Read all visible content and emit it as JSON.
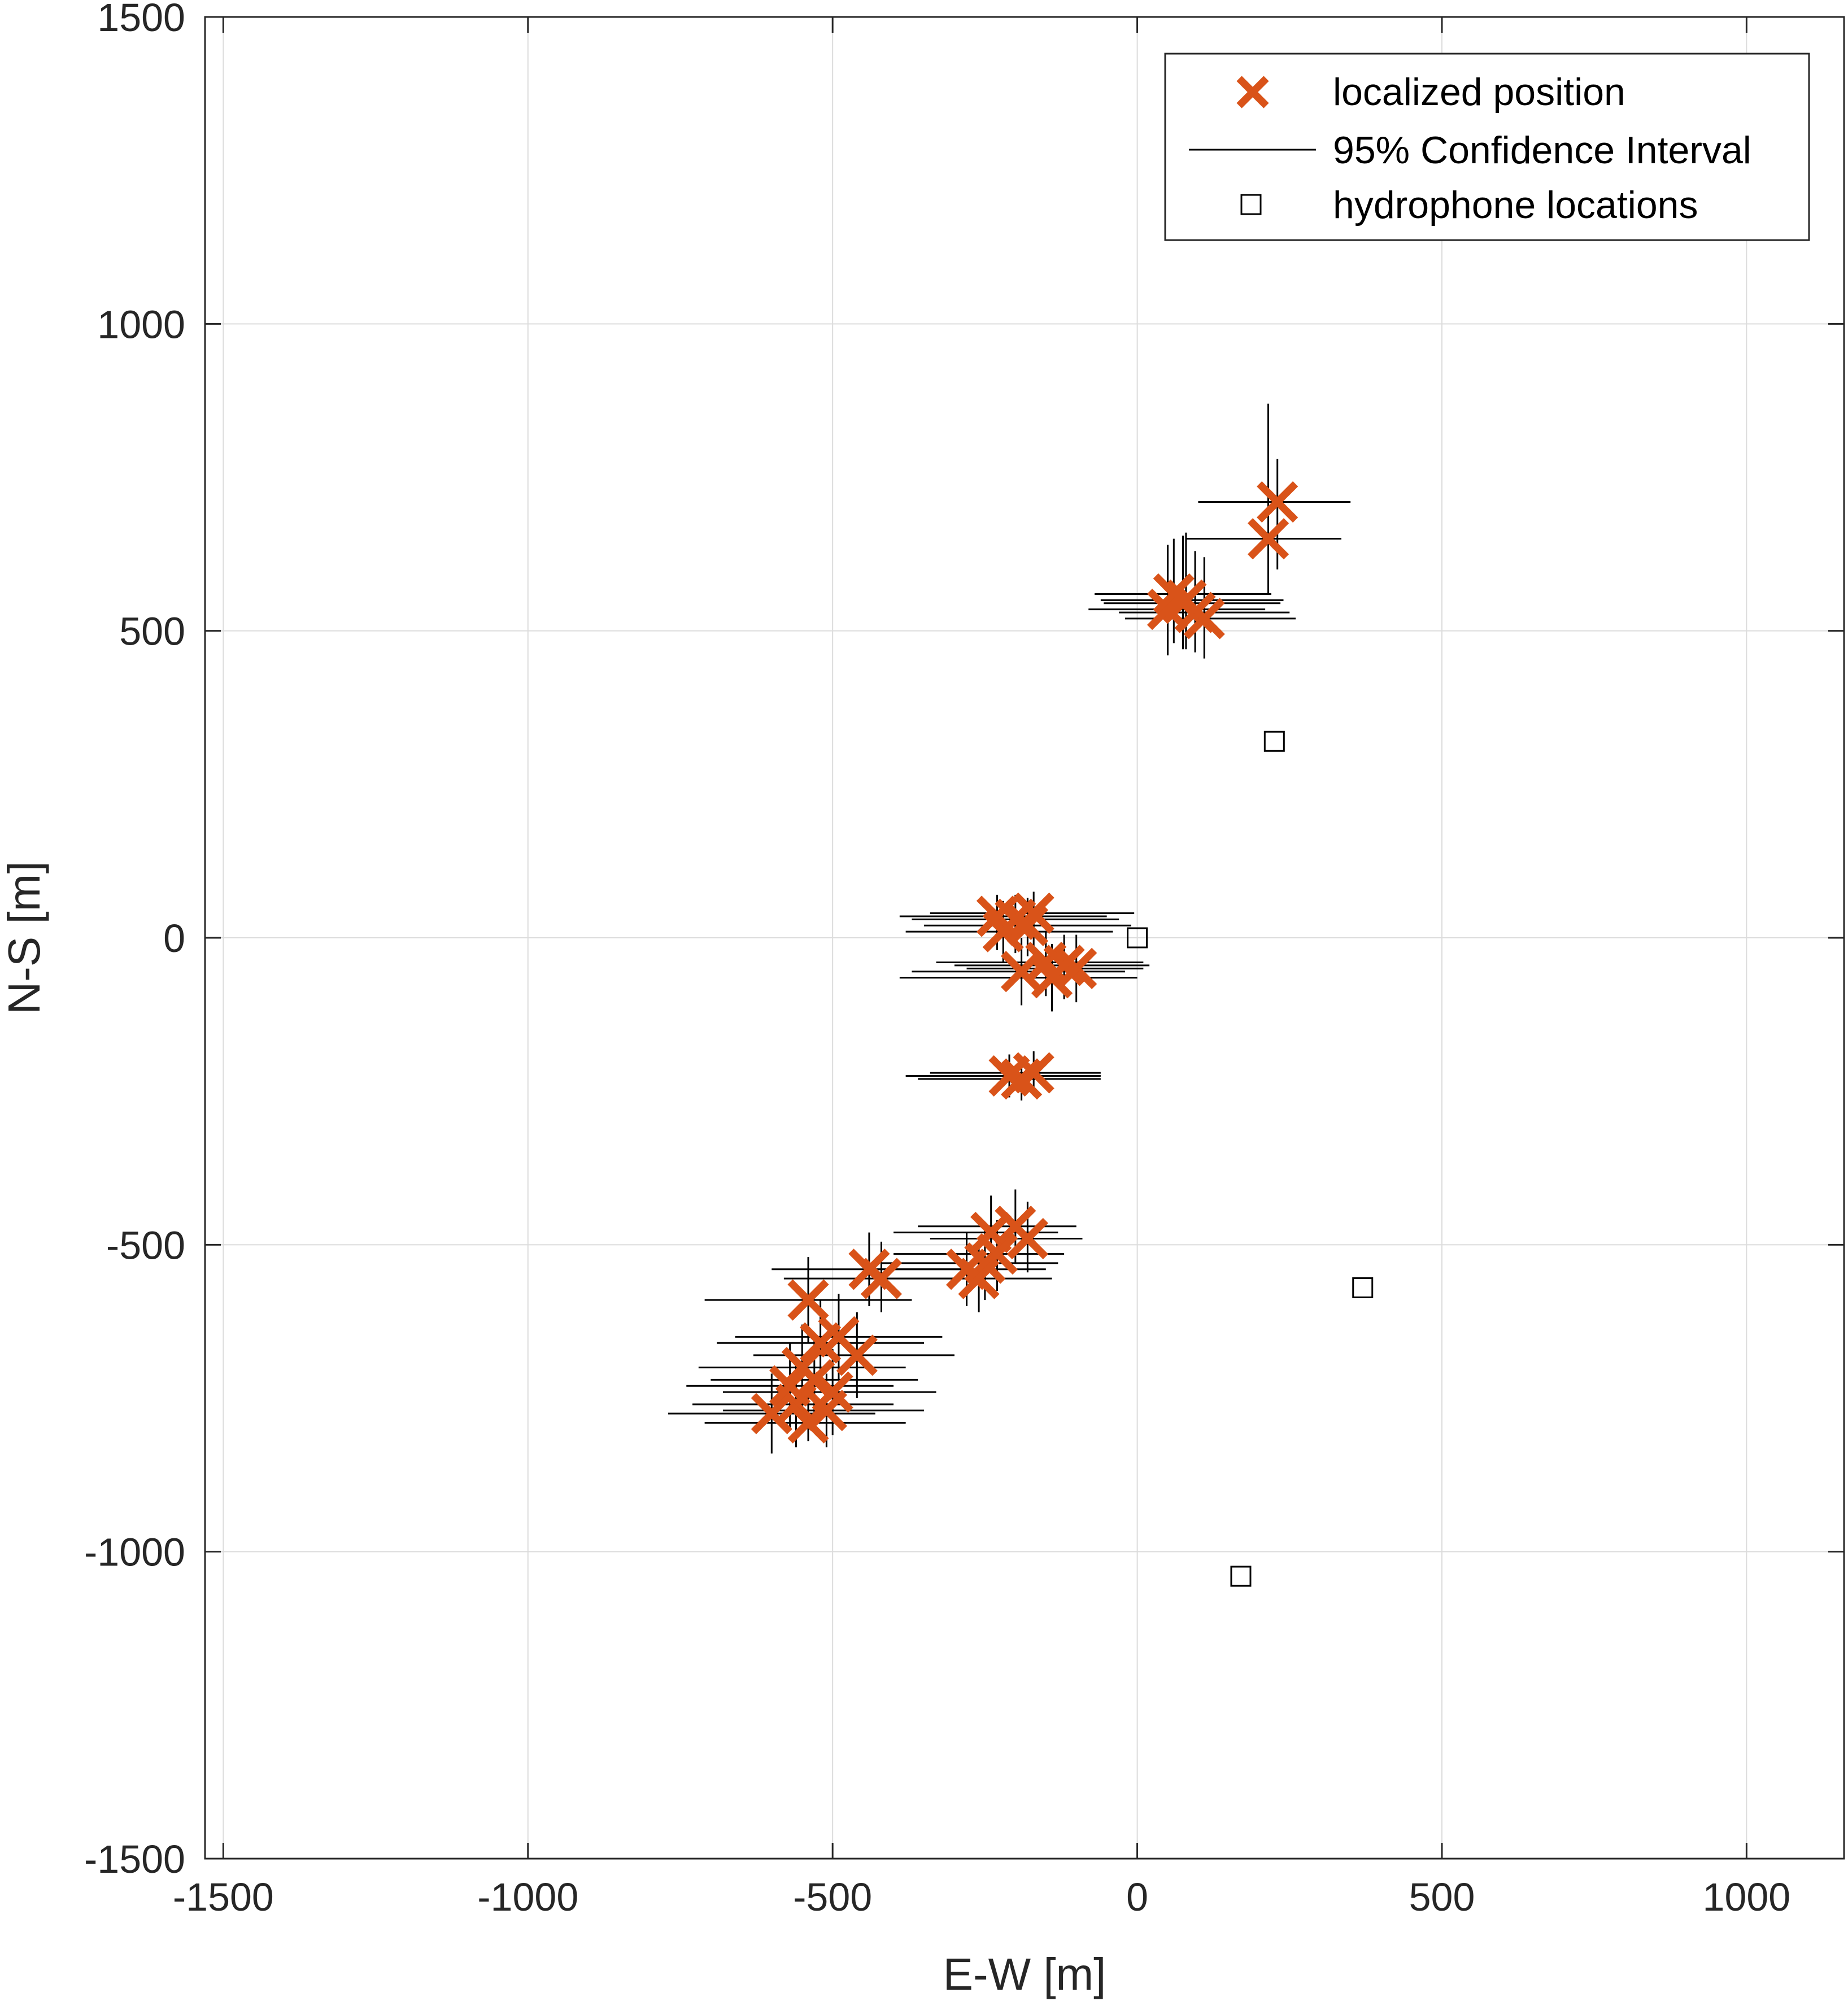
{
  "chart_data": {
    "type": "scatter",
    "title": "",
    "xlabel": "E-W [m]",
    "ylabel": "N-S [m]",
    "xlim": [
      -1530,
      1160
    ],
    "ylim": [
      -1500,
      1500
    ],
    "grid": true,
    "x_ticks": [
      -1500,
      -1000,
      -500,
      0,
      500,
      1000
    ],
    "y_ticks": [
      -1500,
      -1000,
      -500,
      0,
      500,
      1000,
      1500
    ],
    "x_tick_labels": [
      "-1500",
      "-1000",
      "-500",
      "0",
      "500",
      "1000"
    ],
    "y_tick_labels": [
      "-1500",
      "-1000",
      "-500",
      "0",
      "500",
      "1000",
      "1500"
    ],
    "legend": {
      "position": "top-right",
      "entries": [
        {
          "label": "localized position",
          "marker": "x",
          "color": "#D95319"
        },
        {
          "label": "95% Confidence Interval",
          "marker": "line",
          "color": "#000000"
        },
        {
          "label": "hydrophone locations",
          "marker": "square",
          "color": "#000000"
        }
      ]
    },
    "series": [
      {
        "name": "localized position",
        "marker": "x",
        "color": "#D95319",
        "points": [
          {
            "x": 230,
            "y": 710,
            "ex": [
              100,
              350
            ],
            "ey": [
              600,
              780
            ]
          },
          {
            "x": 215,
            "y": 650,
            "ex": [
              80,
              335
            ],
            "ey": [
              560,
              870
            ]
          },
          {
            "x": 60,
            "y": 560,
            "ex": [
              -70,
              220
            ],
            "ey": [
              480,
              650
            ]
          },
          {
            "x": 75,
            "y": 545,
            "ex": [
              -55,
              235
            ],
            "ey": [
              470,
              655
            ]
          },
          {
            "x": 50,
            "y": 535,
            "ex": [
              -80,
              210
            ],
            "ey": [
              460,
              640
            ]
          },
          {
            "x": 95,
            "y": 530,
            "ex": [
              -30,
              250
            ],
            "ey": [
              465,
              630
            ]
          },
          {
            "x": 110,
            "y": 520,
            "ex": [
              -20,
              260
            ],
            "ey": [
              455,
              620
            ]
          },
          {
            "x": 80,
            "y": 550,
            "ex": [
              -60,
              240
            ],
            "ey": [
              470,
              660
            ]
          },
          {
            "x": -230,
            "y": 35,
            "ex": [
              -390,
              -50
            ],
            "ey": [
              -20,
              70
            ]
          },
          {
            "x": -200,
            "y": 30,
            "ex": [
              -370,
              -30
            ],
            "ey": [
              -25,
              70
            ]
          },
          {
            "x": -180,
            "y": 20,
            "ex": [
              -350,
              -10
            ],
            "ey": [
              -30,
              65
            ]
          },
          {
            "x": -220,
            "y": 10,
            "ex": [
              -380,
              -40
            ],
            "ey": [
              -40,
              60
            ]
          },
          {
            "x": -170,
            "y": 40,
            "ex": [
              -340,
              -5
            ],
            "ey": [
              -15,
              75
            ]
          },
          {
            "x": -150,
            "y": -40,
            "ex": [
              -330,
              10
            ],
            "ey": [
              -95,
              10
            ]
          },
          {
            "x": -120,
            "y": -45,
            "ex": [
              -300,
              20
            ],
            "ey": [
              -100,
              5
            ]
          },
          {
            "x": -190,
            "y": -55,
            "ex": [
              -370,
              -20
            ],
            "ey": [
              -110,
              0
            ]
          },
          {
            "x": -100,
            "y": -50,
            "ex": [
              -280,
              10
            ],
            "ey": [
              -105,
              5
            ]
          },
          {
            "x": -140,
            "y": -65,
            "ex": [
              -390,
              0
            ],
            "ey": [
              -120,
              -10
            ]
          },
          {
            "x": -210,
            "y": -225,
            "ex": [
              -380,
              -60
            ],
            "ey": [
              -260,
              -190
            ]
          },
          {
            "x": -190,
            "y": -230,
            "ex": [
              -360,
              -60
            ],
            "ey": [
              -265,
              -195
            ]
          },
          {
            "x": -170,
            "y": -220,
            "ex": [
              -340,
              -60
            ],
            "ey": [
              -255,
              -185
            ]
          },
          {
            "x": -240,
            "y": -480,
            "ex": [
              -400,
              -130
            ],
            "ey": [
              -540,
              -420
            ]
          },
          {
            "x": -200,
            "y": -470,
            "ex": [
              -360,
              -100
            ],
            "ey": [
              -530,
              -410
            ]
          },
          {
            "x": -180,
            "y": -490,
            "ex": [
              -340,
              -90
            ],
            "ey": [
              -545,
              -430
            ]
          },
          {
            "x": -280,
            "y": -540,
            "ex": [
              -450,
              -150
            ],
            "ey": [
              -600,
              -480
            ]
          },
          {
            "x": -250,
            "y": -530,
            "ex": [
              -420,
              -130
            ],
            "ey": [
              -590,
              -470
            ]
          },
          {
            "x": -230,
            "y": -515,
            "ex": [
              -400,
              -120
            ],
            "ey": [
              -575,
              -460
            ]
          },
          {
            "x": -260,
            "y": -555,
            "ex": [
              -430,
              -140
            ],
            "ey": [
              -610,
              -495
            ]
          },
          {
            "x": -440,
            "y": -540,
            "ex": [
              -600,
              -280
            ],
            "ey": [
              -600,
              -480
            ]
          },
          {
            "x": -420,
            "y": -555,
            "ex": [
              -580,
              -260
            ],
            "ey": [
              -610,
              -495
            ]
          },
          {
            "x": -540,
            "y": -590,
            "ex": [
              -710,
              -370
            ],
            "ey": [
              -660,
              -520
            ]
          },
          {
            "x": -520,
            "y": -660,
            "ex": [
              -690,
              -350
            ],
            "ey": [
              -730,
              -590
            ]
          },
          {
            "x": -490,
            "y": -650,
            "ex": [
              -660,
              -320
            ],
            "ey": [
              -720,
              -580
            ]
          },
          {
            "x": -460,
            "y": -680,
            "ex": [
              -630,
              -300
            ],
            "ey": [
              -750,
              -610
            ]
          },
          {
            "x": -550,
            "y": -700,
            "ex": [
              -720,
              -380
            ],
            "ey": [
              -770,
              -630
            ]
          },
          {
            "x": -530,
            "y": -720,
            "ex": [
              -700,
              -360
            ],
            "ey": [
              -790,
              -650
            ]
          },
          {
            "x": -500,
            "y": -740,
            "ex": [
              -680,
              -330
            ],
            "ey": [
              -810,
              -670
            ]
          },
          {
            "x": -560,
            "y": -760,
            "ex": [
              -730,
              -400
            ],
            "ey": [
              -830,
              -690
            ]
          },
          {
            "x": -600,
            "y": -775,
            "ex": [
              -770,
              -430
            ],
            "ey": [
              -840,
              -710
            ]
          },
          {
            "x": -540,
            "y": -790,
            "ex": [
              -710,
              -380
            ],
            "ey": [
              -820,
              -740
            ]
          },
          {
            "x": -510,
            "y": -770,
            "ex": [
              -680,
              -350
            ],
            "ey": [
              -830,
              -710
            ]
          },
          {
            "x": -570,
            "y": -730,
            "ex": [
              -740,
              -400
            ],
            "ey": [
              -800,
              -660
            ]
          }
        ]
      },
      {
        "name": "hydrophone locations",
        "marker": "square",
        "color": "#000000",
        "points": [
          {
            "x": 0,
            "y": 0
          },
          {
            "x": 225,
            "y": 320
          },
          {
            "x": 370,
            "y": -570
          },
          {
            "x": 170,
            "y": -1040
          }
        ]
      }
    ]
  }
}
